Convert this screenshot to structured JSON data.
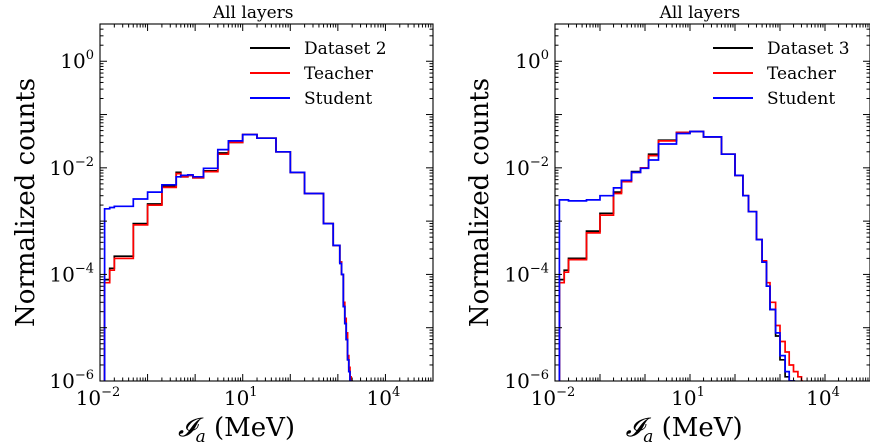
{
  "chart_data": [
    {
      "type": "line",
      "title": "All layers",
      "xlabel": "𝓘_a (MeV)",
      "ylabel": "Normalized counts",
      "xscale": "log",
      "yscale": "log",
      "xlim": [
        0.01,
        100000
      ],
      "ylim": [
        1e-06,
        5
      ],
      "xticks": [
        {
          "base": "10",
          "exp": "−2"
        },
        {
          "base": "10",
          "exp": "1"
        },
        {
          "base": "10",
          "exp": "4"
        }
      ],
      "yticks": [
        {
          "base": "10",
          "exp": "0"
        },
        {
          "base": "10",
          "exp": "−2"
        },
        {
          "base": "10",
          "exp": "−4"
        },
        {
          "base": "10",
          "exp": "−6"
        }
      ],
      "legend_position": "top-right",
      "grid": false,
      "series": [
        {
          "name": "Dataset 2",
          "color": "#000000",
          "x": [
            0.012,
            0.0125,
            0.016,
            0.02,
            0.05,
            0.1,
            0.2,
            0.4,
            0.5,
            0.7,
            0.9,
            1.5,
            3,
            5,
            10,
            20,
            50,
            100,
            200,
            500,
            800,
            1100,
            1200,
            1300,
            1400,
            1500,
            1600,
            1700,
            1800,
            1900
          ],
          "y": [
            1e-06,
            8e-05,
            0.00013,
            0.00022,
            0.0009,
            0.0021,
            0.0045,
            0.0082,
            0.0068,
            0.0072,
            0.0065,
            0.0088,
            0.019,
            0.03,
            0.042,
            0.036,
            0.02,
            0.0082,
            0.0033,
            0.0009,
            0.00035,
            0.00017,
            0.0001,
            2.5e-05,
            1.2e-05,
            6e-06,
            2.5e-06,
            1.5e-06,
            1e-06,
            1e-06
          ]
        },
        {
          "name": "Teacher",
          "color": "#ff0000",
          "x": [
            0.012,
            0.0125,
            0.016,
            0.02,
            0.05,
            0.1,
            0.2,
            0.4,
            0.5,
            0.7,
            0.9,
            1.5,
            3,
            5,
            10,
            20,
            50,
            100,
            200,
            500,
            800,
            1100,
            1200,
            1300,
            1400,
            1500,
            1600,
            1700,
            1800,
            1900
          ],
          "y": [
            1e-06,
            7e-05,
            0.00012,
            0.0002,
            0.00085,
            0.002,
            0.0043,
            0.0078,
            0.0068,
            0.0072,
            0.0065,
            0.0085,
            0.018,
            0.03,
            0.042,
            0.036,
            0.02,
            0.0082,
            0.0033,
            0.0009,
            0.00035,
            0.00017,
            0.0001,
            3e-05,
            1.5e-05,
            8e-06,
            3e-06,
            1.8e-06,
            1.2e-06,
            1e-06
          ]
        },
        {
          "name": "Student",
          "color": "#0000ff",
          "x": [
            0.012,
            0.0125,
            0.016,
            0.02,
            0.05,
            0.1,
            0.2,
            0.4,
            0.5,
            0.7,
            0.9,
            1.5,
            3,
            5,
            10,
            20,
            50,
            100,
            200,
            500,
            800,
            1100,
            1200,
            1300,
            1400,
            1500,
            1600,
            1700,
            1800,
            1900
          ],
          "y": [
            1e-06,
            0.0017,
            0.0018,
            0.0019,
            0.0026,
            0.0035,
            0.0048,
            0.0068,
            0.0072,
            0.0074,
            0.0068,
            0.0098,
            0.022,
            0.032,
            0.042,
            0.036,
            0.02,
            0.0082,
            0.0033,
            0.0009,
            0.00035,
            0.00016,
            0.0001,
            2.5e-05,
            1.2e-05,
            6e-06,
            2.5e-06,
            1.5e-06,
            1e-06,
            1e-06
          ]
        }
      ]
    },
    {
      "type": "line",
      "title": "All layers",
      "xlabel": "𝓘_a (MeV)",
      "ylabel": "Normalized counts",
      "xscale": "log",
      "yscale": "log",
      "xlim": [
        0.01,
        100000
      ],
      "ylim": [
        1e-06,
        5
      ],
      "xticks": [
        {
          "base": "10",
          "exp": "−2"
        },
        {
          "base": "10",
          "exp": "1"
        },
        {
          "base": "10",
          "exp": "4"
        }
      ],
      "yticks": [
        {
          "base": "10",
          "exp": "0"
        },
        {
          "base": "10",
          "exp": "−2"
        },
        {
          "base": "10",
          "exp": "−4"
        },
        {
          "base": "10",
          "exp": "−6"
        }
      ],
      "legend_position": "top-right",
      "grid": false,
      "series": [
        {
          "name": "Dataset 3",
          "color": "#000000",
          "x": [
            0.012,
            0.0125,
            0.016,
            0.02,
            0.05,
            0.1,
            0.2,
            0.3,
            0.5,
            0.8,
            1.2,
            2,
            5,
            10,
            20,
            50,
            100,
            150,
            200,
            300,
            400,
            500,
            600,
            800,
            1000,
            1300,
            1600,
            2000
          ],
          "y": [
            1e-06,
            8e-05,
            0.00012,
            0.0002,
            0.00065,
            0.0014,
            0.0035,
            0.0058,
            0.0085,
            0.01,
            0.018,
            0.033,
            0.046,
            0.048,
            0.038,
            0.018,
            0.0072,
            0.003,
            0.0015,
            0.00045,
            0.00017,
            6e-05,
            2.2e-05,
            7e-06,
            2.5e-06,
            1.2e-06,
            1e-06,
            1e-06
          ]
        },
        {
          "name": "Teacher",
          "color": "#ff0000",
          "x": [
            0.012,
            0.0125,
            0.016,
            0.02,
            0.05,
            0.1,
            0.2,
            0.3,
            0.5,
            0.8,
            1.2,
            2,
            5,
            10,
            20,
            50,
            100,
            150,
            200,
            300,
            400,
            500,
            600,
            800,
            1000,
            1300,
            1600,
            2000,
            2500,
            3000
          ],
          "y": [
            1e-06,
            7e-05,
            0.00011,
            0.00019,
            0.0006,
            0.0013,
            0.0033,
            0.0055,
            0.0082,
            0.01,
            0.017,
            0.032,
            0.046,
            0.048,
            0.038,
            0.018,
            0.0072,
            0.003,
            0.0015,
            0.00045,
            0.00018,
            7e-05,
            3e-05,
            1.1e-05,
            5.5e-06,
            3.5e-06,
            2e-06,
            1.5e-06,
            1.2e-06,
            1e-06
          ]
        },
        {
          "name": "Student",
          "color": "#0000ff",
          "x": [
            0.012,
            0.0125,
            0.016,
            0.02,
            0.05,
            0.1,
            0.2,
            0.3,
            0.5,
            0.8,
            1.2,
            2,
            5,
            10,
            20,
            50,
            100,
            150,
            200,
            300,
            400,
            500,
            600,
            800,
            1000,
            1300,
            1600,
            2000
          ],
          "y": [
            1e-06,
            0.0025,
            0.0025,
            0.0024,
            0.0025,
            0.003,
            0.0042,
            0.0058,
            0.0082,
            0.0098,
            0.014,
            0.028,
            0.044,
            0.048,
            0.038,
            0.018,
            0.0072,
            0.003,
            0.0015,
            0.00045,
            0.00017,
            6e-05,
            2.2e-05,
            8e-06,
            3e-06,
            1.5e-06,
            1e-06,
            1e-06
          ]
        }
      ]
    }
  ]
}
